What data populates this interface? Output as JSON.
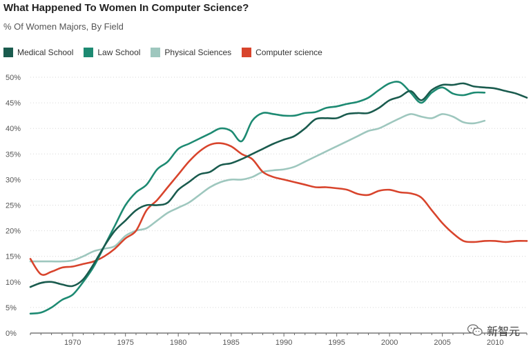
{
  "chart_data": {
    "type": "line",
    "title": "What Happened To Women In Computer Science?",
    "subtitle": "% Of Women Majors, By Field",
    "xlabel": "",
    "ylabel": "",
    "xlim": [
      1966,
      2013
    ],
    "ylim": [
      0,
      50
    ],
    "grid": true,
    "legend_position": "top-left",
    "x_ticks": [
      1970,
      1975,
      1980,
      1985,
      1990,
      1995,
      2000,
      2005,
      2010
    ],
    "y_ticks": [
      0,
      5,
      10,
      15,
      20,
      25,
      30,
      35,
      40,
      45,
      50
    ],
    "y_tick_suffix": "%",
    "series": [
      {
        "name": "Medical School",
        "color": "#1a5b4e",
        "x": [
          1966,
          1967,
          1968,
          1969,
          1970,
          1971,
          1972,
          1973,
          1974,
          1975,
          1976,
          1977,
          1978,
          1979,
          1980,
          1981,
          1982,
          1983,
          1984,
          1985,
          1986,
          1987,
          1988,
          1989,
          1990,
          1991,
          1992,
          1993,
          1994,
          1995,
          1996,
          1997,
          1998,
          1999,
          2000,
          2001,
          2002,
          2003,
          2004,
          2005,
          2006,
          2007,
          2008,
          2009,
          2010,
          2011,
          2012,
          2013
        ],
        "values": [
          9.0,
          9.8,
          10.0,
          9.5,
          9.2,
          10.5,
          13.5,
          17.0,
          20.0,
          22.0,
          24.0,
          25.0,
          25.0,
          25.5,
          28.0,
          29.5,
          31.0,
          31.5,
          32.8,
          33.2,
          34.0,
          35.0,
          36.0,
          37.0,
          37.8,
          38.5,
          40.0,
          41.8,
          42.0,
          42.0,
          42.8,
          43.0,
          43.0,
          44.0,
          45.5,
          46.2,
          47.3,
          45.5,
          47.5,
          48.5,
          48.5,
          48.8,
          48.2,
          48.0,
          47.8,
          47.3,
          46.8,
          46.0
        ]
      },
      {
        "name": "Law School",
        "color": "#1d8a72",
        "x": [
          1966,
          1967,
          1968,
          1969,
          1970,
          1971,
          1972,
          1973,
          1974,
          1975,
          1976,
          1977,
          1978,
          1979,
          1980,
          1981,
          1982,
          1983,
          1984,
          1985,
          1986,
          1987,
          1988,
          1989,
          1990,
          1991,
          1992,
          1993,
          1994,
          1995,
          1996,
          1997,
          1998,
          1999,
          2000,
          2001,
          2002,
          2003,
          2004,
          2005,
          2006,
          2007,
          2008,
          2009
        ],
        "values": [
          3.8,
          4.0,
          5.0,
          6.5,
          7.5,
          10.0,
          13.0,
          17.0,
          21.0,
          25.0,
          27.5,
          29.0,
          32.0,
          33.5,
          36.0,
          37.0,
          38.0,
          39.0,
          40.0,
          39.5,
          37.5,
          41.5,
          43.0,
          42.8,
          42.5,
          42.5,
          43.0,
          43.2,
          44.0,
          44.3,
          44.8,
          45.2,
          46.0,
          47.5,
          48.8,
          49.0,
          47.0,
          45.0,
          47.0,
          48.0,
          46.8,
          46.5,
          47.0,
          47.0
        ]
      },
      {
        "name": "Physical Sciences",
        "color": "#9ec7be",
        "x": [
          1966,
          1967,
          1968,
          1969,
          1970,
          1971,
          1972,
          1973,
          1974,
          1975,
          1976,
          1977,
          1978,
          1979,
          1980,
          1981,
          1982,
          1983,
          1984,
          1985,
          1986,
          1987,
          1988,
          1989,
          1990,
          1991,
          1992,
          1993,
          1994,
          1995,
          1996,
          1997,
          1998,
          1999,
          2000,
          2001,
          2002,
          2003,
          2004,
          2005,
          2006,
          2007,
          2008,
          2009
        ],
        "values": [
          14.0,
          14.0,
          14.0,
          14.0,
          14.2,
          15.0,
          16.0,
          16.5,
          17.0,
          19.0,
          20.0,
          20.5,
          22.0,
          23.5,
          24.5,
          25.5,
          27.0,
          28.5,
          29.5,
          30.0,
          30.0,
          30.5,
          31.5,
          31.8,
          32.0,
          32.5,
          33.5,
          34.5,
          35.5,
          36.5,
          37.5,
          38.5,
          39.5,
          40.0,
          41.0,
          42.0,
          42.8,
          42.3,
          42.0,
          42.8,
          42.3,
          41.2,
          41.0,
          41.5
        ]
      },
      {
        "name": "Computer science",
        "color": "#d8442c",
        "x": [
          1966,
          1967,
          1968,
          1969,
          1970,
          1971,
          1972,
          1973,
          1974,
          1975,
          1976,
          1977,
          1978,
          1979,
          1980,
          1981,
          1982,
          1983,
          1984,
          1985,
          1986,
          1987,
          1988,
          1989,
          1990,
          1991,
          1992,
          1993,
          1994,
          1995,
          1996,
          1997,
          1998,
          1999,
          2000,
          2001,
          2002,
          2003,
          2004,
          2005,
          2006,
          2007,
          2008,
          2009,
          2010,
          2011,
          2012,
          2013
        ],
        "values": [
          14.5,
          11.5,
          12.0,
          12.8,
          13.0,
          13.5,
          14.0,
          15.0,
          16.5,
          18.5,
          20.0,
          24.0,
          26.0,
          28.5,
          31.0,
          33.5,
          35.5,
          36.8,
          37.1,
          36.5,
          35.0,
          34.0,
          31.5,
          30.5,
          30.0,
          29.5,
          29.0,
          28.5,
          28.5,
          28.3,
          28.0,
          27.2,
          27.0,
          27.8,
          28.0,
          27.5,
          27.3,
          26.5,
          24.0,
          21.5,
          19.5,
          18.0,
          17.8,
          18.0,
          18.0,
          17.8,
          18.0,
          18.0
        ]
      }
    ]
  },
  "watermark": {
    "text": "新智元",
    "icon": "wechat-icon"
  }
}
